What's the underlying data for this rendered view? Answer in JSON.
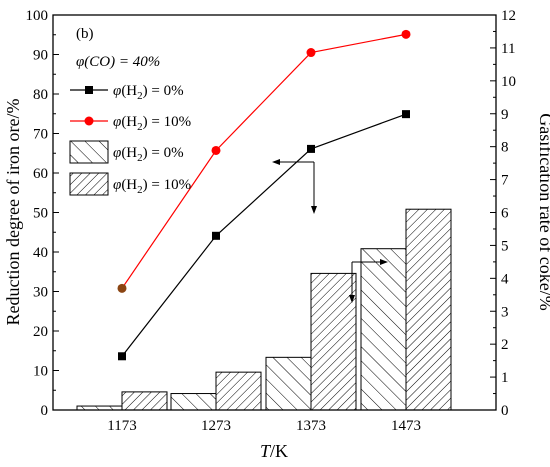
{
  "chart_data": {
    "type": "bar",
    "panel_label": "(b)",
    "categories": [
      "1173",
      "1273",
      "1373",
      "1473"
    ],
    "xlabel": "T/K",
    "ylabel_left": "Reduction degree of iron ore/%",
    "ylabel_right": "Gasification rate of coke/%",
    "ylim_left": [
      0,
      100
    ],
    "ylim_right": [
      0,
      12
    ],
    "yticks_left": [
      0,
      10,
      20,
      30,
      40,
      50,
      60,
      70,
      80,
      90,
      100
    ],
    "yticks_right": [
      0,
      1,
      2,
      3,
      4,
      5,
      6,
      7,
      8,
      9,
      10,
      11,
      12
    ],
    "condition_label": "φ(CO) = 40%",
    "line_series": [
      {
        "name": "φ(H2) = 0%",
        "axis": "left",
        "color": "#000000",
        "marker": "square",
        "values": [
          13.6,
          44.1,
          66.1,
          74.9
        ]
      },
      {
        "name": "φ(H2) = 10%",
        "axis": "left",
        "color": "#ff0000",
        "marker": "circle",
        "values": [
          30.8,
          65.7,
          90.5,
          95.1
        ]
      }
    ],
    "bar_series": [
      {
        "name": "φ(H2) = 0%",
        "axis": "right",
        "pattern": "sparse-hatch",
        "values": [
          0.12,
          0.5,
          1.6,
          4.9
        ]
      },
      {
        "name": "φ(H2) = 10%",
        "axis": "right",
        "pattern": "dense-hatch",
        "values": [
          0.55,
          1.15,
          4.15,
          6.1
        ]
      }
    ],
    "legend": {
      "items": [
        {
          "prefix": "φ(H",
          "sub": "2",
          "suffix": ") = 0%",
          "kind": "line",
          "color": "#000000",
          "marker": "square"
        },
        {
          "prefix": "φ(H",
          "sub": "2",
          "suffix": ") = 10%",
          "kind": "line",
          "color": "#ff0000",
          "marker": "circle"
        },
        {
          "prefix": "φ(H",
          "sub": "2",
          "suffix": ") = 0%",
          "kind": "bar",
          "pattern": "sparse-hatch"
        },
        {
          "prefix": "φ(H",
          "sub": "2",
          "suffix": ") = 10%",
          "kind": "bar",
          "pattern": "dense-hatch"
        }
      ]
    }
  }
}
